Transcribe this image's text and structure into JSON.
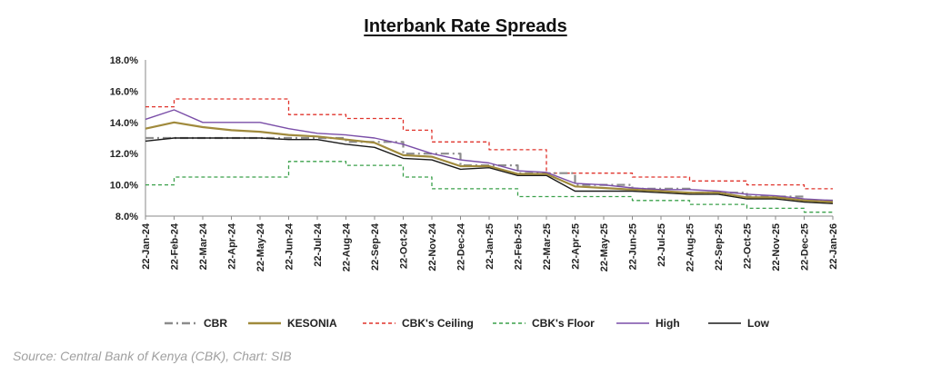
{
  "chart_data": {
    "type": "line",
    "title": "Interbank Rate Spreads",
    "xlabel": "",
    "ylabel": "",
    "ylim": [
      8,
      18
    ],
    "y_ticks": [
      "8.0%",
      "10.0%",
      "12.0%",
      "14.0%",
      "16.0%",
      "18.0%"
    ],
    "categories": [
      "22-Jan-24",
      "22-Feb-24",
      "22-Mar-24",
      "22-Apr-24",
      "22-May-24",
      "22-Jun-24",
      "22-Jul-24",
      "22-Aug-24",
      "22-Sep-24",
      "22-Oct-24",
      "22-Nov-24",
      "22-Dec-24",
      "22-Jan-25",
      "22-Feb-25",
      "22-Mar-25",
      "22-Apr-25",
      "22-May-25",
      "22-Jun-25",
      "22-Jul-25",
      "22-Aug-25",
      "22-Sep-25",
      "22-Oct-25",
      "22-Nov-25",
      "22-Dec-25",
      "22-Jan-26"
    ],
    "series": [
      {
        "name": "CBR",
        "style": "dashdot",
        "color": "#8c8c8c",
        "values": [
          13.0,
          13.0,
          13.0,
          13.0,
          13.0,
          13.0,
          13.0,
          12.75,
          12.75,
          12.0,
          12.0,
          11.25,
          11.25,
          10.75,
          10.75,
          10.0,
          10.0,
          9.75,
          9.75,
          9.5,
          9.5,
          9.25,
          9.25,
          9.0,
          9.0
        ]
      },
      {
        "name": "KESONIA",
        "style": "solid",
        "color": "#a08a3c",
        "values": [
          13.6,
          14.0,
          13.7,
          13.5,
          13.4,
          13.2,
          13.1,
          12.9,
          12.7,
          11.9,
          11.8,
          11.2,
          11.2,
          10.7,
          10.7,
          9.9,
          9.8,
          9.7,
          9.6,
          9.5,
          9.5,
          9.2,
          9.2,
          9.0,
          8.9
        ]
      },
      {
        "name": "CBK's Ceiling",
        "style": "dashed",
        "color": "#e0342c",
        "values": [
          15.0,
          15.5,
          15.5,
          15.5,
          15.5,
          14.5,
          14.5,
          14.25,
          14.25,
          13.5,
          12.75,
          12.75,
          12.25,
          12.25,
          10.75,
          10.75,
          10.75,
          10.5,
          10.5,
          10.25,
          10.25,
          10.0,
          10.0,
          9.75,
          9.75
        ]
      },
      {
        "name": "CBK's Floor",
        "style": "dashed",
        "color": "#3aa04a",
        "values": [
          10.0,
          10.5,
          10.5,
          10.5,
          10.5,
          11.5,
          11.5,
          11.25,
          11.25,
          10.5,
          9.75,
          9.75,
          9.75,
          9.25,
          9.25,
          9.25,
          9.25,
          9.0,
          9.0,
          8.75,
          8.75,
          8.5,
          8.5,
          8.25,
          8.25
        ]
      },
      {
        "name": "High",
        "style": "solid",
        "color": "#7a4ea8",
        "values": [
          14.2,
          14.8,
          14.0,
          14.0,
          14.0,
          13.6,
          13.3,
          13.2,
          13.0,
          12.6,
          12.0,
          11.6,
          11.4,
          10.9,
          10.8,
          10.1,
          10.0,
          9.8,
          9.7,
          9.7,
          9.6,
          9.4,
          9.3,
          9.1,
          9.0
        ]
      },
      {
        "name": "Low",
        "style": "solid",
        "color": "#1a1a1a",
        "values": [
          12.8,
          13.0,
          13.0,
          13.0,
          13.0,
          12.9,
          12.9,
          12.6,
          12.4,
          11.7,
          11.6,
          11.0,
          11.1,
          10.6,
          10.6,
          9.6,
          9.6,
          9.6,
          9.5,
          9.4,
          9.4,
          9.1,
          9.1,
          8.9,
          8.8
        ]
      }
    ]
  },
  "source": "Source: Central Bank of Kenya (CBK), Chart: SIB"
}
